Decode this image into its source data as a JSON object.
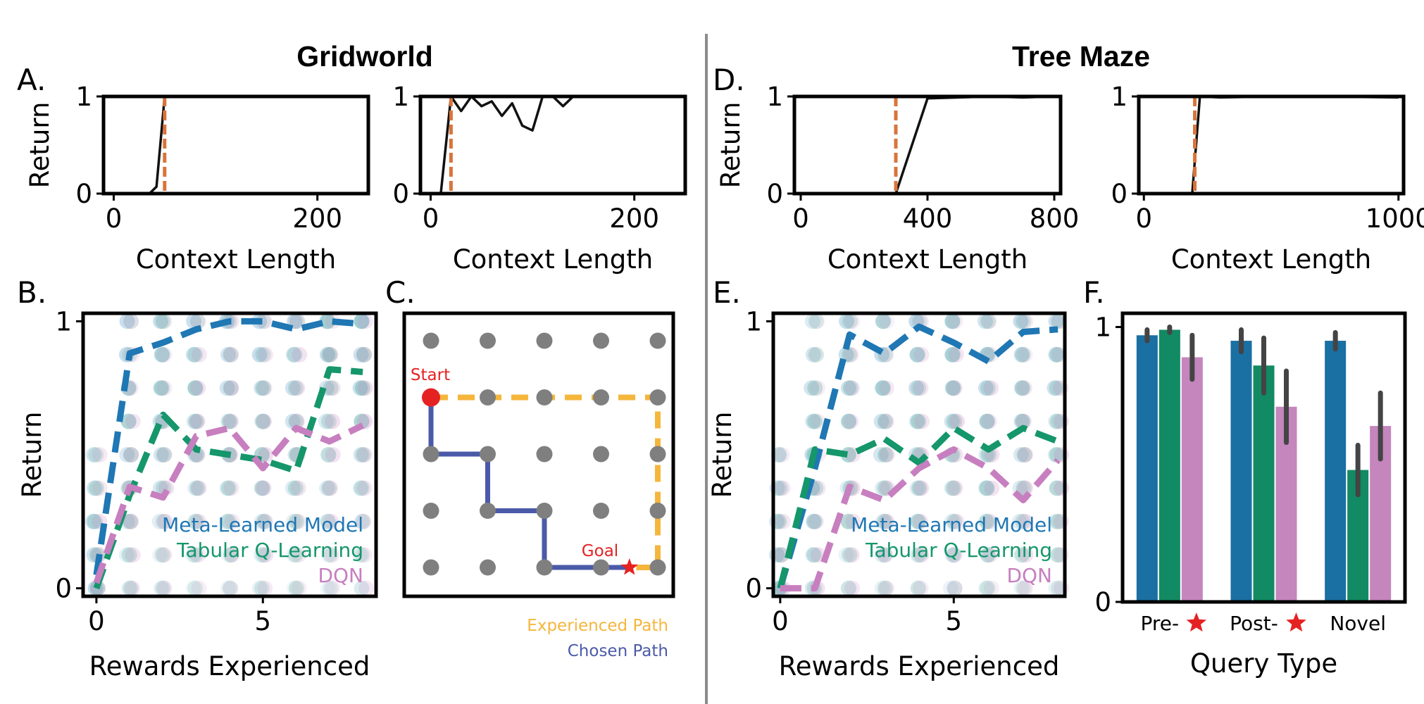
{
  "titles": {
    "left": "Gridworld",
    "right": "Tree Maze"
  },
  "panel_labels": {
    "A": "A.",
    "B": "B.",
    "C": "C.",
    "D": "D.",
    "E": "E.",
    "F": "F."
  },
  "colors": {
    "meta": "#1f77b4",
    "tabular": "#15966b",
    "dqn": "#c77fbf",
    "bar_meta": "#1a6fa3",
    "bar_tabular": "#128a63",
    "bar_dqn": "#c585bd",
    "context_marker": "#d9743a",
    "experienced_path": "#f5b63c",
    "chosen_path": "#4b5aa8",
    "start": "#e52222",
    "goal": "#e52222",
    "node": "#7f7f7f"
  },
  "chart_data": [
    {
      "id": "A1",
      "type": "line",
      "xlabel": "Context Length",
      "ylabel": "Return",
      "xlim": [
        -10,
        250
      ],
      "ylim": [
        0,
        1
      ],
      "xticks": [
        0,
        200
      ],
      "yticks": [
        0,
        1
      ],
      "marker_x": 50,
      "series": [
        {
          "x": [
            0,
            35,
            42,
            50,
            55,
            100,
            150,
            200,
            240
          ],
          "y": [
            0,
            0,
            0.07,
            1,
            1,
            1,
            1,
            1,
            1
          ]
        }
      ]
    },
    {
      "id": "A2",
      "type": "line",
      "xlabel": "Context Length",
      "ylabel": "",
      "xlim": [
        -10,
        250
      ],
      "ylim": [
        0,
        1
      ],
      "xticks": [
        0,
        200
      ],
      "yticks": [
        0,
        1
      ],
      "marker_x": 20,
      "series": [
        {
          "x": [
            0,
            10,
            20,
            30,
            40,
            50,
            60,
            70,
            80,
            90,
            100,
            110,
            120,
            130,
            140,
            160,
            200,
            240
          ],
          "y": [
            0,
            0,
            1,
            0.85,
            1,
            0.9,
            0.95,
            0.8,
            0.93,
            0.7,
            0.65,
            1,
            1,
            0.9,
            1,
            1,
            1,
            1
          ]
        }
      ]
    },
    {
      "id": "D1",
      "type": "line",
      "xlabel": "Context Length",
      "ylabel": "Return",
      "xlim": [
        -20,
        820
      ],
      "ylim": [
        0,
        1
      ],
      "xticks": [
        0,
        400,
        800
      ],
      "yticks": [
        0,
        1
      ],
      "marker_x": 300,
      "series": [
        {
          "x": [
            300,
            400,
            600,
            700,
            800
          ],
          "y": [
            0,
            0.98,
            1,
            0.99,
            1
          ]
        }
      ]
    },
    {
      "id": "D2",
      "type": "line",
      "xlabel": "Context Length",
      "ylabel": "",
      "xlim": [
        -20,
        1020
      ],
      "ylim": [
        0,
        1
      ],
      "xticks": [
        0,
        1000
      ],
      "yticks": [
        0,
        1
      ],
      "marker_x": 200,
      "series": [
        {
          "x": [
            0,
            190,
            220,
            300,
            500,
            700,
            1000
          ],
          "y": [
            0,
            0,
            1,
            0.99,
            1,
            1,
            0.99
          ]
        }
      ]
    },
    {
      "id": "B",
      "type": "line",
      "xlabel": "Rewards Experienced",
      "ylabel": "Return",
      "xlim": [
        -0.4,
        8.4
      ],
      "ylim": [
        -0.03,
        1.03
      ],
      "xticks": [
        0,
        5
      ],
      "yticks": [
        0,
        1
      ],
      "series": [
        {
          "name": "Meta-Learned Model",
          "x": [
            0,
            1,
            2,
            3,
            4,
            5,
            6,
            7,
            8
          ],
          "y": [
            0.05,
            0.88,
            0.92,
            0.97,
            1.0,
            1.0,
            0.97,
            1.0,
            0.99
          ]
        },
        {
          "name": "Tabular Q-Learning",
          "x": [
            0,
            1,
            2,
            3,
            4,
            5,
            6,
            7,
            8
          ],
          "y": [
            0,
            0.35,
            0.65,
            0.52,
            0.5,
            0.48,
            0.44,
            0.82,
            0.81
          ]
        },
        {
          "name": "DQN",
          "x": [
            0,
            1,
            2,
            3,
            4,
            5,
            6,
            7,
            8
          ],
          "y": [
            0.02,
            0.38,
            0.34,
            0.57,
            0.6,
            0.45,
            0.6,
            0.55,
            0.61
          ]
        }
      ]
    },
    {
      "id": "E",
      "type": "line",
      "xlabel": "Rewards Experienced",
      "ylabel": "Return",
      "xlim": [
        -0.2,
        8.2
      ],
      "ylim": [
        -0.03,
        1.03
      ],
      "xticks": [
        0,
        5
      ],
      "yticks": [
        0,
        1
      ],
      "series": [
        {
          "name": "Meta-Learned Model",
          "x": [
            0,
            1,
            2,
            3,
            4,
            5,
            6,
            7,
            8
          ],
          "y": [
            0,
            0.45,
            0.95,
            0.88,
            0.98,
            0.92,
            0.85,
            0.96,
            0.97
          ]
        },
        {
          "name": "Tabular Q-Learning",
          "x": [
            0,
            1,
            2,
            3,
            4,
            5,
            6,
            7,
            8
          ],
          "y": [
            0,
            0.52,
            0.5,
            0.56,
            0.47,
            0.6,
            0.52,
            0.6,
            0.55
          ]
        },
        {
          "name": "DQN",
          "x": [
            0,
            1,
            2,
            3,
            4,
            5,
            6,
            7,
            8
          ],
          "y": [
            0,
            0,
            0.38,
            0.33,
            0.45,
            0.52,
            0.45,
            0.33,
            0.48
          ]
        }
      ]
    },
    {
      "id": "F",
      "type": "bar",
      "xlabel": "Query Type",
      "ylabel": "",
      "categories": [
        "Pre-",
        "Post-",
        "Novel"
      ],
      "category_markers": [
        "star",
        "star",
        ""
      ],
      "ylim": [
        0,
        1.05
      ],
      "yticks": [
        0,
        1
      ],
      "series": [
        {
          "name": "Meta-Learned Model",
          "values": [
            0.97,
            0.95,
            0.95
          ],
          "err": [
            0.02,
            0.04,
            0.03
          ]
        },
        {
          "name": "Tabular Q-Learning",
          "values": [
            0.99,
            0.86,
            0.48
          ],
          "err": [
            0.01,
            0.1,
            0.09
          ]
        },
        {
          "name": "DQN",
          "values": [
            0.89,
            0.71,
            0.64
          ],
          "err": [
            0.08,
            0.13,
            0.12
          ]
        }
      ]
    }
  ],
  "gridworld": {
    "legend": {
      "experienced": "Experienced Path",
      "chosen": "Chosen Path"
    },
    "start_label": "Start",
    "goal_label": "Goal",
    "nodes": [
      [
        0,
        0
      ],
      [
        1,
        0
      ],
      [
        2,
        0
      ],
      [
        3,
        0
      ],
      [
        4,
        0
      ],
      [
        0,
        1
      ],
      [
        1,
        1
      ],
      [
        2,
        1
      ],
      [
        3,
        1
      ],
      [
        4,
        1
      ],
      [
        0,
        2
      ],
      [
        1,
        2
      ],
      [
        2,
        2
      ],
      [
        3,
        2
      ],
      [
        4,
        2
      ],
      [
        0,
        3
      ],
      [
        1,
        3
      ],
      [
        2,
        3
      ],
      [
        3,
        3
      ],
      [
        4,
        3
      ],
      [
        0,
        4
      ],
      [
        1,
        4
      ],
      [
        2,
        4
      ],
      [
        3,
        4
      ],
      [
        4,
        4
      ]
    ],
    "start": [
      0,
      1
    ],
    "goal": [
      3.5,
      4
    ],
    "experienced_path": [
      [
        0,
        1
      ],
      [
        4,
        1
      ],
      [
        4,
        4
      ],
      [
        3.5,
        4
      ]
    ],
    "chosen_path": [
      [
        0,
        1
      ],
      [
        0,
        2
      ],
      [
        1,
        2
      ],
      [
        1,
        3
      ],
      [
        2,
        3
      ],
      [
        2,
        4
      ],
      [
        3.5,
        4
      ]
    ]
  }
}
